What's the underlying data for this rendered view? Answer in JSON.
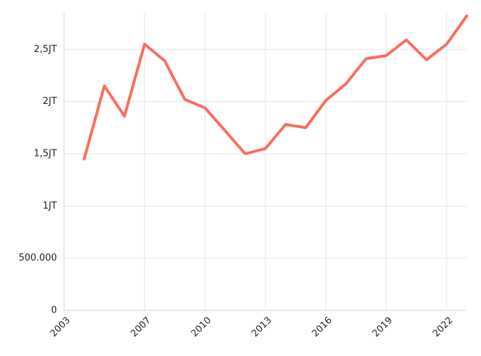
{
  "chart_data": {
    "type": "line",
    "title": "",
    "xlabel": "",
    "ylabel": "",
    "x": [
      2004,
      2005,
      2006,
      2007,
      2008,
      2009,
      2010,
      2011,
      2012,
      2013,
      2014,
      2015,
      2016,
      2017,
      2018,
      2019,
      2020,
      2021,
      2022,
      2023
    ],
    "series": [
      {
        "values": [
          1450000,
          2150000,
          1860000,
          2550000,
          2390000,
          2020000,
          1940000,
          1720000,
          1500000,
          1550000,
          1780000,
          1750000,
          2010000,
          2170000,
          2410000,
          2440000,
          2590000,
          2400000,
          2550000,
          2820000
        ],
        "color": "#fa6e5f"
      }
    ],
    "xlim": [
      2003,
      2023
    ],
    "ylim": [
      0,
      2850000
    ],
    "x_ticks": [
      2003,
      2007,
      2010,
      2013,
      2016,
      2019,
      2022
    ],
    "x_tick_labels": [
      "2003",
      "2007",
      "2010",
      "2013",
      "2016",
      "2019",
      "2022"
    ],
    "y_ticks": [
      0,
      500000,
      1000000,
      1500000,
      2000000,
      2500000
    ],
    "y_tick_labels": [
      "0",
      "500.000",
      "1JT",
      "1,5JT",
      "2JT",
      "2,5JT"
    ],
    "grid": true,
    "legend": "none"
  }
}
